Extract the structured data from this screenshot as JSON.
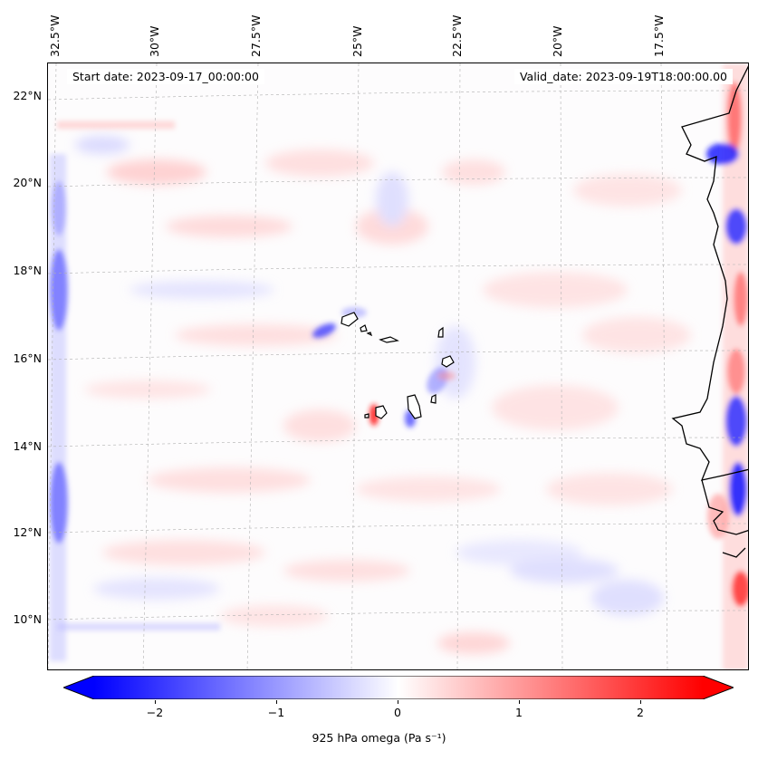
{
  "header": {
    "start_date": "Start date: 2023-09-17_00:00:00",
    "valid_date": "Valid_date: 2023-09-19T18:00:00.00"
  },
  "map": {
    "lon_labels": [
      "32.5°W",
      "30°W",
      "27.5°W",
      "25°W",
      "22.5°W",
      "20°W",
      "17.5°W"
    ],
    "lat_labels": [
      "22°N",
      "20°N",
      "18°N",
      "16°N",
      "14°N",
      "12°N",
      "10°N"
    ],
    "colors": {
      "negative": "#0000ff",
      "neutral": "#ffffff",
      "positive": "#ff0000",
      "coastline": "#000000",
      "grid": "#b0b0b0"
    },
    "gridlines": "dashed"
  },
  "colorbar": {
    "ticks": [
      "−2",
      "−1",
      "0",
      "1",
      "2"
    ],
    "range": [
      -2.75,
      2.75
    ],
    "extend": "both",
    "title": "925 hPa omega (Pa s⁻¹)"
  }
}
